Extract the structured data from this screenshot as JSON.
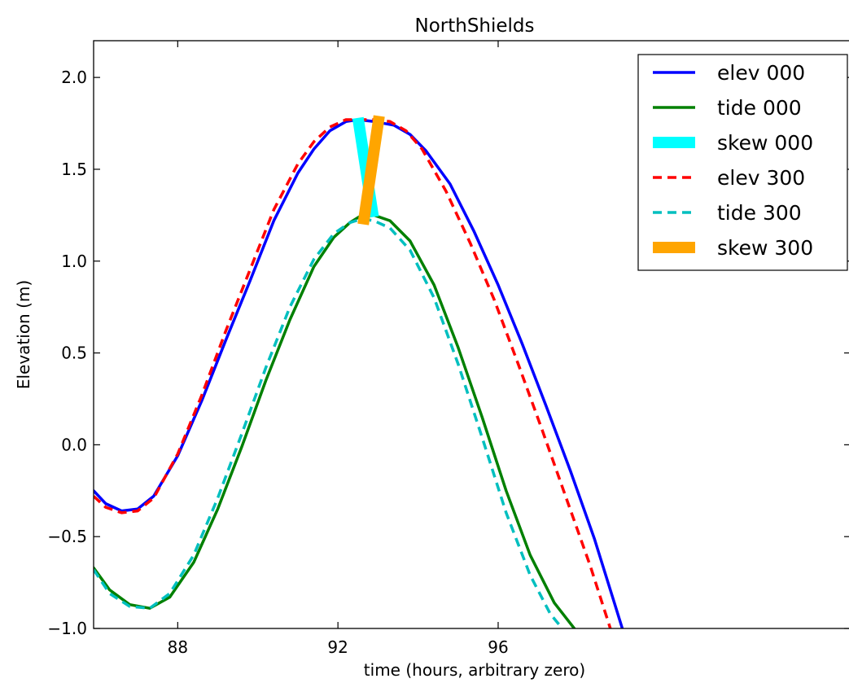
{
  "chart_data": {
    "type": "line",
    "title": "NorthShields",
    "xlabel": "time (hours, arbitrary zero)",
    "ylabel": "Elevation (m)",
    "xlim": [
      85.9,
      104.8
    ],
    "ylim": [
      -1.0,
      2.2
    ],
    "xticks": [
      88,
      92,
      96
    ],
    "xtick_labels": [
      "88",
      "92",
      "96"
    ],
    "yticks": [
      -1.0,
      -0.5,
      0.0,
      0.5,
      1.0,
      1.5,
      2.0
    ],
    "ytick_labels": [
      "−1.0",
      "−0.5",
      "0.0",
      "0.5",
      "1.0",
      "1.5",
      "2.0"
    ],
    "grid": false,
    "legend_position": "top-right",
    "series": [
      {
        "name": "elev 000",
        "color": "#0000ff",
        "dash": "solid",
        "width": 3.5,
        "x": [
          85.9,
          86.2,
          86.6,
          87.0,
          87.4,
          88.0,
          88.6,
          89.2,
          89.8,
          90.4,
          91.0,
          91.4,
          91.8,
          92.2,
          92.5,
          92.9,
          93.4,
          93.8,
          94.2,
          94.8,
          95.4,
          96.0,
          96.6,
          97.2,
          97.8,
          98.4,
          98.9,
          99.1
        ],
        "y": [
          -0.25,
          -0.32,
          -0.36,
          -0.35,
          -0.28,
          -0.06,
          0.24,
          0.57,
          0.89,
          1.22,
          1.48,
          1.61,
          1.71,
          1.76,
          1.77,
          1.76,
          1.74,
          1.69,
          1.6,
          1.42,
          1.16,
          0.87,
          0.55,
          0.21,
          -0.14,
          -0.51,
          -0.86,
          -1.0
        ]
      },
      {
        "name": "tide 000",
        "color": "#008000",
        "dash": "solid",
        "width": 3.5,
        "x": [
          85.9,
          86.3,
          86.8,
          87.3,
          87.8,
          88.4,
          89.0,
          89.6,
          90.2,
          90.8,
          91.4,
          91.9,
          92.3,
          92.6,
          92.9,
          93.3,
          93.8,
          94.4,
          95.0,
          95.6,
          96.2,
          96.8,
          97.4,
          97.9
        ],
        "y": [
          -0.67,
          -0.79,
          -0.87,
          -0.89,
          -0.83,
          -0.64,
          -0.35,
          -0.01,
          0.35,
          0.68,
          0.97,
          1.13,
          1.21,
          1.25,
          1.25,
          1.22,
          1.11,
          0.87,
          0.53,
          0.15,
          -0.25,
          -0.6,
          -0.86,
          -1.0
        ]
      },
      {
        "name": "elev 300",
        "color": "#ff0000",
        "dash": "dashed",
        "width": 3.5,
        "x": [
          85.9,
          86.2,
          86.6,
          87.0,
          87.4,
          88.0,
          88.6,
          89.2,
          89.8,
          90.4,
          91.0,
          91.4,
          91.8,
          92.2,
          92.5,
          92.9,
          93.3,
          93.7,
          94.1,
          94.7,
          95.3,
          95.9,
          96.5,
          97.1,
          97.7,
          98.3,
          98.8
        ],
        "y": [
          -0.28,
          -0.34,
          -0.37,
          -0.36,
          -0.29,
          -0.05,
          0.27,
          0.62,
          0.95,
          1.28,
          1.53,
          1.65,
          1.73,
          1.77,
          1.77,
          1.77,
          1.76,
          1.71,
          1.61,
          1.38,
          1.1,
          0.79,
          0.44,
          0.08,
          -0.29,
          -0.66,
          -1.0
        ]
      },
      {
        "name": "tide 300",
        "color": "#00bfbf",
        "dash": "dashed",
        "width": 3.5,
        "x": [
          85.9,
          86.3,
          86.8,
          87.3,
          87.8,
          88.4,
          89.0,
          89.6,
          90.2,
          90.8,
          91.4,
          91.9,
          92.3,
          92.6,
          92.9,
          93.3,
          93.8,
          94.4,
          95.0,
          95.6,
          96.2,
          96.8,
          97.3,
          97.6
        ],
        "y": [
          -0.68,
          -0.81,
          -0.88,
          -0.89,
          -0.81,
          -0.6,
          -0.29,
          0.06,
          0.42,
          0.75,
          1.01,
          1.15,
          1.21,
          1.23,
          1.22,
          1.18,
          1.06,
          0.8,
          0.44,
          0.04,
          -0.37,
          -0.71,
          -0.92,
          -1.0
        ]
      },
      {
        "name": "skew 000",
        "color": "#00ffff",
        "dash": "solid",
        "width": 14,
        "x": [
          92.5,
          92.88
        ],
        "y": [
          1.78,
          1.24
        ]
      },
      {
        "name": "skew 300",
        "color": "#ffa500",
        "dash": "solid",
        "width": 14,
        "x": [
          92.63,
          93.03
        ],
        "y": [
          1.2,
          1.79
        ]
      }
    ],
    "legend_order": [
      "elev 000",
      "tide 000",
      "skew 000",
      "elev 300",
      "tide 300",
      "skew 300"
    ]
  }
}
